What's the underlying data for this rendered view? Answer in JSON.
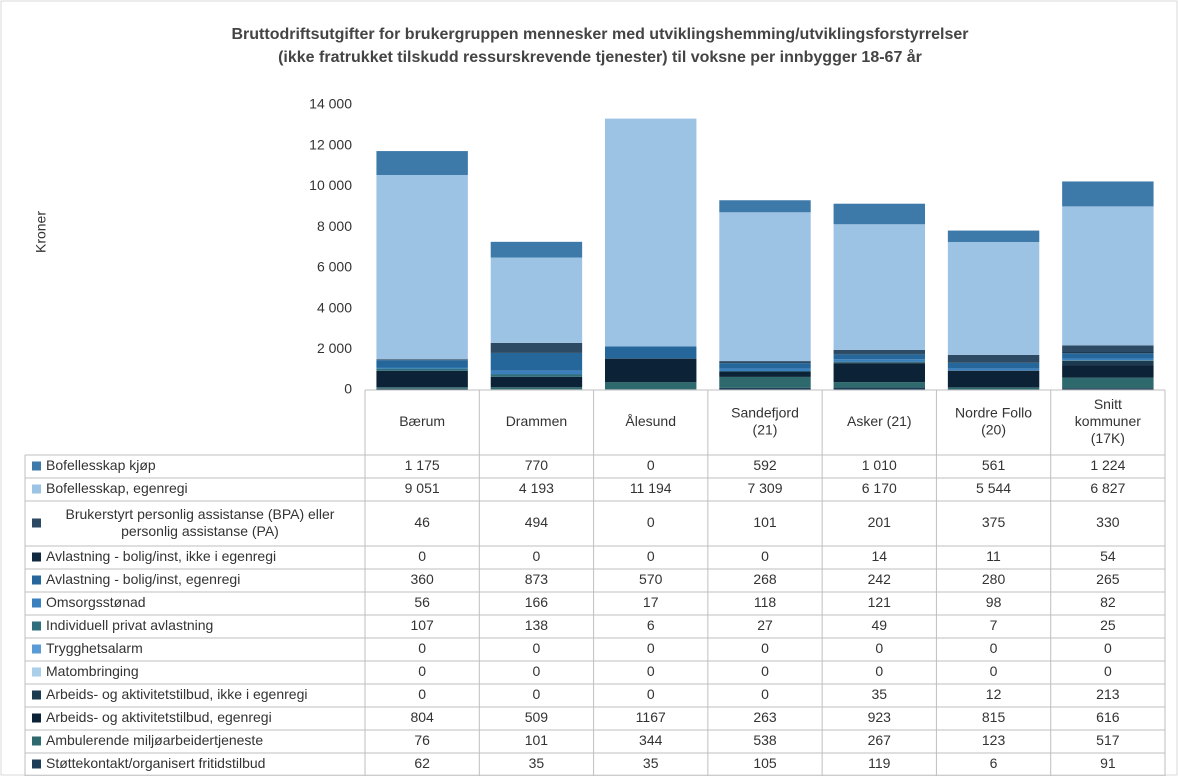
{
  "chart_data": {
    "type": "stacked_bar",
    "title": "Bruttodriftsutgifter for brukergruppen mennesker med utviklingshemming/utviklingsforstyrrelser",
    "subtitle": "(ikke fratrukket tilskudd ressurskrevende tjenester) til voksne per innbygger 18-67 år",
    "y_label": "Kroner",
    "categories": [
      "Bærum",
      "Drammen",
      "Ålesund",
      "Sandefjord (21)",
      "Asker (21)",
      "Nordre Follo (20)",
      "Snitt kommuner (17K)"
    ],
    "ylim": [
      0,
      14000
    ],
    "yticks": [
      0,
      {
        "value": 2000,
        "label": "2 000"
      },
      {
        "value": 4000,
        "label": "4 000"
      },
      {
        "value": 6000,
        "label": "6 000"
      },
      {
        "value": 8000,
        "label": "8 000"
      },
      {
        "value": 10000,
        "label": "10 000"
      },
      {
        "value": 12000,
        "label": "12 000"
      },
      {
        "value": 14000,
        "label": "14 000"
      }
    ],
    "series": [
      {
        "name": "Bofellesskap kjøp",
        "color": "#3d7aaa",
        "values": [
          1175,
          770,
          0,
          592,
          1010,
          561,
          1224
        ],
        "value_labels": [
          "1 175",
          "770",
          "0",
          "592",
          "1 010",
          "561",
          "1 224"
        ]
      },
      {
        "name": "Bofellesskap, egenregi",
        "color": "#9dc3e4",
        "values": [
          9051,
          4193,
          11194,
          7309,
          6170,
          5544,
          6827
        ],
        "value_labels": [
          "9 051",
          "4 193",
          "11 194",
          "7 309",
          "6 170",
          "5 544",
          "6 827"
        ]
      },
      {
        "name": "Brukerstyrt personlig assistanse (BPA) eller personlig assistanse (PA)",
        "color": "#2c4a63",
        "values": [
          46,
          494,
          0,
          101,
          201,
          375,
          330
        ],
        "value_labels": [
          "46",
          "494",
          "0",
          "101",
          "201",
          "375",
          "330"
        ]
      },
      {
        "name": "Avlastning - bolig/inst, ikke i egenregi",
        "color": "#10293f",
        "values": [
          0,
          0,
          0,
          0,
          14,
          11,
          54
        ],
        "value_labels": [
          "0",
          "0",
          "0",
          "0",
          "14",
          "11",
          "54"
        ]
      },
      {
        "name": "Avlastning - bolig/inst, egenregi",
        "color": "#26679b",
        "values": [
          360,
          873,
          570,
          268,
          242,
          280,
          265
        ],
        "value_labels": [
          "360",
          "873",
          "570",
          "268",
          "242",
          "280",
          "265"
        ]
      },
      {
        "name": "Omsorgsstønad",
        "color": "#3a80bf",
        "values": [
          56,
          166,
          17,
          118,
          121,
          98,
          82
        ],
        "value_labels": [
          "56",
          "166",
          "17",
          "118",
          "121",
          "98",
          "82"
        ]
      },
      {
        "name": "Individuell privat avlastning",
        "color": "#2f6e7c",
        "values": [
          107,
          138,
          6,
          27,
          49,
          7,
          25
        ],
        "value_labels": [
          "107",
          "138",
          "6",
          "27",
          "49",
          "7",
          "25"
        ]
      },
      {
        "name": "Trygghetsalarm",
        "color": "#5b9bd5",
        "values": [
          0,
          0,
          0,
          0,
          0,
          0,
          0
        ],
        "value_labels": [
          "0",
          "0",
          "0",
          "0",
          "0",
          "0",
          "0"
        ]
      },
      {
        "name": "Matombringing",
        "color": "#a9cfe9",
        "values": [
          0,
          0,
          0,
          0,
          0,
          0,
          0
        ],
        "value_labels": [
          "0",
          "0",
          "0",
          "0",
          "0",
          "0",
          "0"
        ]
      },
      {
        "name": "Arbeids- og aktivitetstilbud, ikke i egenregi",
        "color": "#1b3a4f",
        "values": [
          0,
          0,
          0,
          0,
          35,
          12,
          213
        ],
        "value_labels": [
          "0",
          "0",
          "0",
          "0",
          "35",
          "12",
          "213"
        ]
      },
      {
        "name": "Arbeids- og aktivitetstilbud, egenregi",
        "color": "#0c2237",
        "values": [
          804,
          509,
          1167,
          263,
          923,
          815,
          616
        ],
        "value_labels": [
          "804",
          "509",
          "1167",
          "263",
          "923",
          "815",
          "616"
        ]
      },
      {
        "name": "Ambulerende miljøarbeidertjeneste",
        "color": "#2e6a6d",
        "values": [
          76,
          101,
          344,
          538,
          267,
          123,
          517
        ],
        "value_labels": [
          "76",
          "101",
          "344",
          "538",
          "267",
          "123",
          "517"
        ]
      },
      {
        "name": "Støttekontakt/organisert fritidstilbud",
        "color": "#1d3d56",
        "values": [
          62,
          35,
          35,
          105,
          119,
          6,
          91
        ],
        "value_labels": [
          "62",
          "35",
          "35",
          "105",
          "119",
          "6",
          "91"
        ]
      }
    ]
  }
}
